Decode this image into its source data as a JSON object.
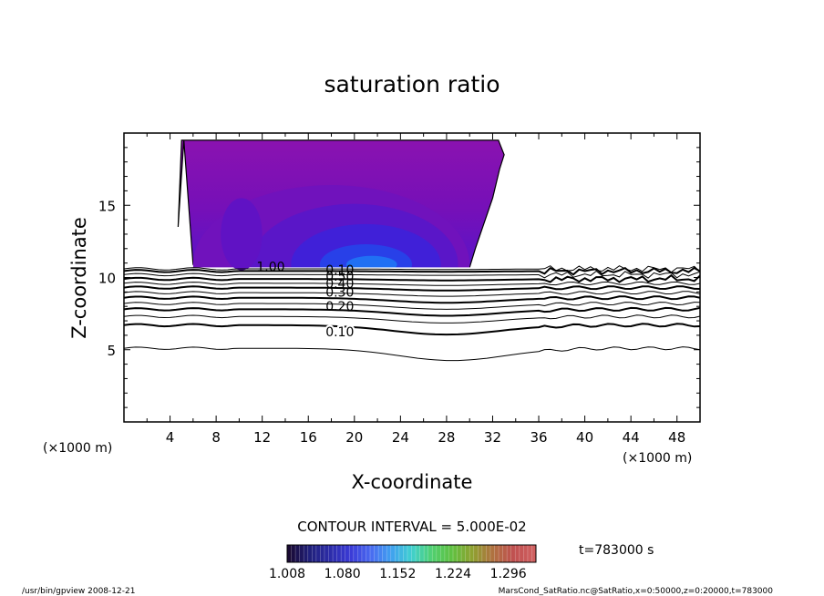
{
  "chart_data": {
    "type": "contour",
    "title": "saturation ratio",
    "xlabel": "X-coordinate",
    "ylabel": "Z-coordinate",
    "x_unit": "(×1000 m)",
    "z_unit": "(×1000 m)",
    "xlim": [
      0,
      50
    ],
    "zlim": [
      0,
      20
    ],
    "xticks": [
      4,
      8,
      12,
      16,
      20,
      24,
      28,
      32,
      36,
      40,
      44,
      48
    ],
    "zticks": [
      5,
      10,
      15
    ],
    "contour_interval_text": "CONTOUR INTERVAL = 5.000E-02",
    "contour_lines": [
      {
        "value": 0.05,
        "z_left": 5.1,
        "z_min": 4.25,
        "x_min": 28.5
      },
      {
        "value": 0.1,
        "z_left": 6.7,
        "z_min": 6.05,
        "x_min": 28.0
      },
      {
        "value": 0.15,
        "z_left": 7.3,
        "z_min": 6.85,
        "x_min": 28.0
      },
      {
        "value": 0.2,
        "z_left": 7.8,
        "z_min": 7.35,
        "x_min": 28.0
      },
      {
        "value": 0.25,
        "z_left": 8.2,
        "z_min": 7.8,
        "x_min": 28.0
      },
      {
        "value": 0.3,
        "z_left": 8.6,
        "z_min": 8.25,
        "x_min": 28.0
      },
      {
        "value": 0.35,
        "z_left": 8.95,
        "z_min": 8.7,
        "x_min": 28.0
      },
      {
        "value": 0.4,
        "z_left": 9.3,
        "z_min": 9.1,
        "x_min": 28.0
      },
      {
        "value": 0.45,
        "z_left": 9.6,
        "z_min": 9.45,
        "x_min": 28.0
      },
      {
        "value": 0.5,
        "z_left": 9.9,
        "z_min": 9.8,
        "x_min": 28.0
      },
      {
        "value": 0.55,
        "z_left": 10.2,
        "z_min": 10.15,
        "x_min": 28.0
      },
      {
        "value": 0.6,
        "z_left": 10.45,
        "z_min": 10.4,
        "x_min": 28.0
      },
      {
        "value": 0.65,
        "z_left": 10.6,
        "z_min": 10.55,
        "x_min": 28.0
      }
    ],
    "contour_labels": [
      "1.00",
      "0.10",
      "0.20",
      "0.30",
      "0.40",
      "0.50",
      "0.10"
    ],
    "shaded_region": {
      "description_levels_min": 1.008,
      "outline_x": [
        5.2,
        6.0,
        28.0,
        30.0,
        30.5,
        32.0,
        32.6,
        33.0,
        32.5,
        5.0,
        4.7,
        5.2
      ],
      "outline_z": [
        19.5,
        10.9,
        10.7,
        10.7,
        12.0,
        15.5,
        17.5,
        18.5,
        19.5,
        19.5,
        13.5,
        19.5
      ]
    },
    "colorbar": {
      "min": 1.008,
      "max": 1.332,
      "tick_labels": [
        "1.008",
        "1.080",
        "1.152",
        "1.224",
        "1.296"
      ],
      "colors": [
        "#1a0a33",
        "#20207a",
        "#2c2ca8",
        "#3a3ad6",
        "#4a6af0",
        "#40a0f0",
        "#40d0d0",
        "#50d070",
        "#60c040",
        "#90a030",
        "#b07040",
        "#c05050",
        "#d06060"
      ]
    },
    "time_label": "t=783000 s"
  },
  "footer": {
    "left": "/usr/bin/gpview   2008-12-21",
    "right": "MarsCond_SatRatio.nc@SatRatio,x=0:50000,z=0:20000,t=783000"
  },
  "colors": {
    "cloud_outer": "#8a12b0",
    "cloud_mid": "#6a10c0",
    "cloud_inner": "#3a18d8",
    "cloud_core": "#1a4af0"
  }
}
